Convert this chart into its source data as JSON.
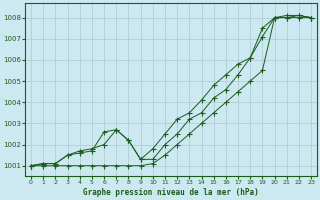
{
  "title": "Graphe pression niveau de la mer (hPa)",
  "bg_color": "#cce8f0",
  "grid_color": "#b0c8d0",
  "line_color": "#1a5c1a",
  "ylim": [
    1000.5,
    1008.7
  ],
  "xlim": [
    -0.5,
    23.5
  ],
  "yticks": [
    1001,
    1002,
    1003,
    1004,
    1005,
    1006,
    1007,
    1008
  ],
  "xticks": [
    0,
    1,
    2,
    3,
    4,
    5,
    6,
    7,
    8,
    9,
    10,
    11,
    12,
    13,
    14,
    15,
    16,
    17,
    18,
    19,
    20,
    21,
    22,
    23
  ],
  "series1": [
    1001.0,
    1001.0,
    1001.0,
    1001.0,
    1001.0,
    1001.0,
    1001.0,
    1001.0,
    1001.0,
    1001.0,
    1001.1,
    1001.5,
    1002.0,
    1002.5,
    1003.0,
    1003.5,
    1004.0,
    1004.5,
    1005.0,
    1005.5,
    1008.0,
    1008.0,
    1008.0,
    1008.0
  ],
  "series2": [
    1001.0,
    1001.1,
    1001.1,
    1001.5,
    1001.6,
    1001.7,
    1002.6,
    1002.7,
    1002.2,
    1001.3,
    1001.8,
    1002.5,
    1003.2,
    1003.5,
    1004.1,
    1004.8,
    1005.3,
    1005.8,
    1006.1,
    1007.1,
    1008.0,
    1008.0,
    1008.1,
    1008.0
  ],
  "series3": [
    1001.0,
    1001.1,
    1001.1,
    1001.5,
    1001.7,
    1001.8,
    1002.0,
    1002.7,
    1002.2,
    1001.3,
    1001.3,
    1002.0,
    1002.5,
    1003.2,
    1003.5,
    1004.2,
    1004.6,
    1005.3,
    1006.1,
    1007.5,
    1008.0,
    1008.1,
    1008.1,
    1008.0
  ]
}
